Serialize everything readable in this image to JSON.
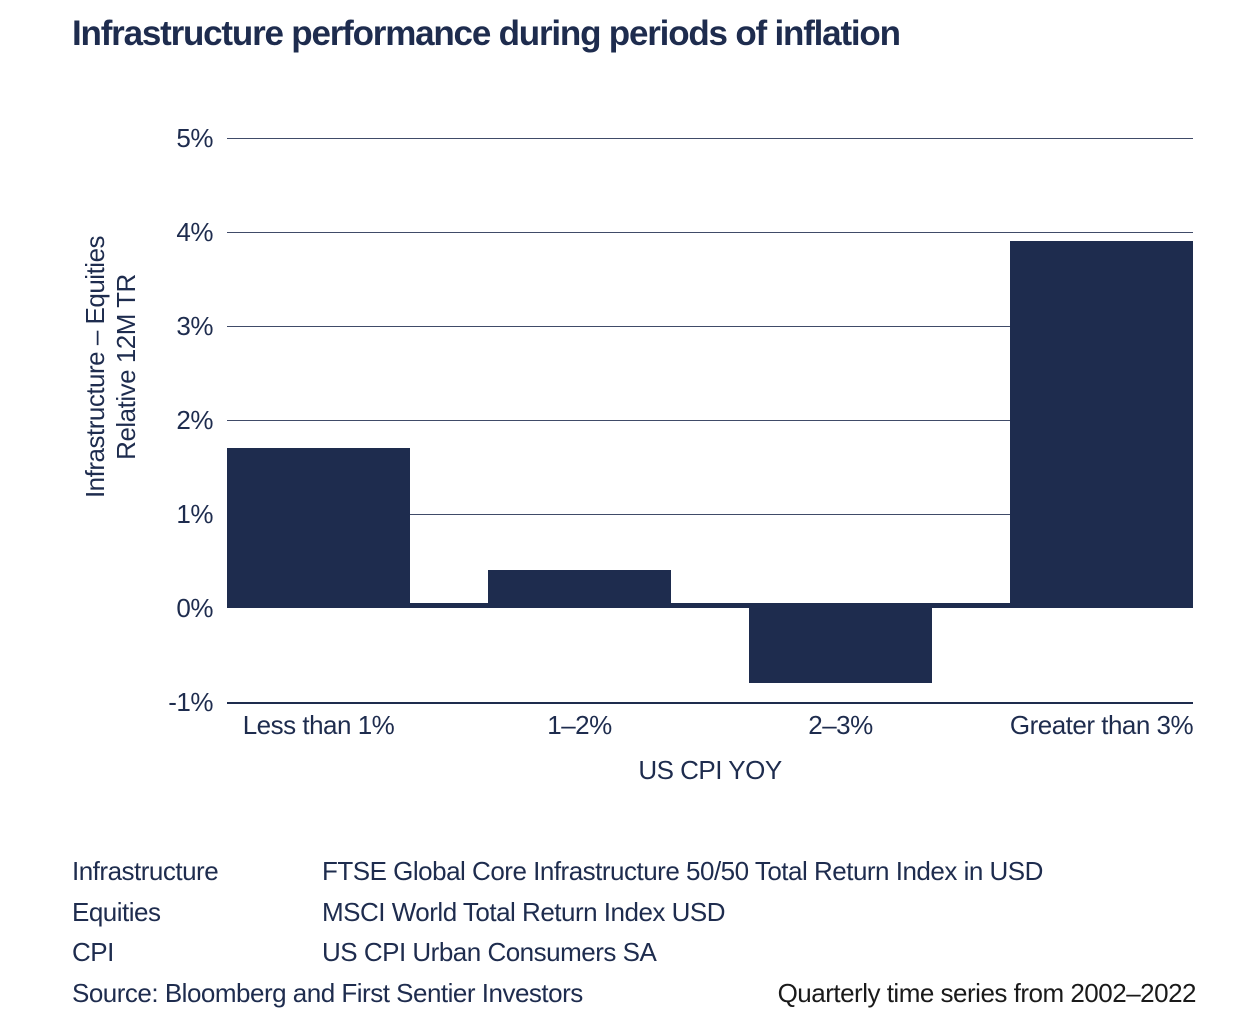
{
  "chart_data": {
    "type": "bar",
    "title": "Infrastructure performance during periods of inflation",
    "categories": [
      "Less than 1%",
      "1–2%",
      "2–3%",
      "Greater than 3%"
    ],
    "values": [
      1.7,
      0.4,
      -0.8,
      3.9
    ],
    "xlabel": "US CPI YOY",
    "ylabel_lines": [
      "Infrastructure – Equities",
      "Relative 12M TR"
    ],
    "yticks": [
      {
        "label": "5%",
        "value": 5
      },
      {
        "label": "4%",
        "value": 4
      },
      {
        "label": "3%",
        "value": 3
      },
      {
        "label": "2%",
        "value": 2
      },
      {
        "label": "1%",
        "value": 1
      },
      {
        "label": "0%",
        "value": 0
      },
      {
        "label": "-1%",
        "value": -1
      }
    ],
    "ylim": [
      -1,
      5
    ],
    "grid": true,
    "legend_position": "none",
    "bar_color": "#1e2c4e"
  },
  "footnotes": {
    "definitions": [
      {
        "term": "Infrastructure",
        "definition": "FTSE Global Core Infrastructure 50/50 Total Return Index in USD"
      },
      {
        "term": "Equities",
        "definition": "MSCI World Total Return Index USD"
      },
      {
        "term": "CPI",
        "definition": "US CPI Urban Consumers SA"
      }
    ],
    "source": "Source: Bloomberg and First Sentier Investors",
    "period": "Quarterly time series from 2002–2022"
  },
  "colors": {
    "navy": "#1e2c4e",
    "period_text": "#1a1a1a",
    "background": "#ffffff"
  }
}
